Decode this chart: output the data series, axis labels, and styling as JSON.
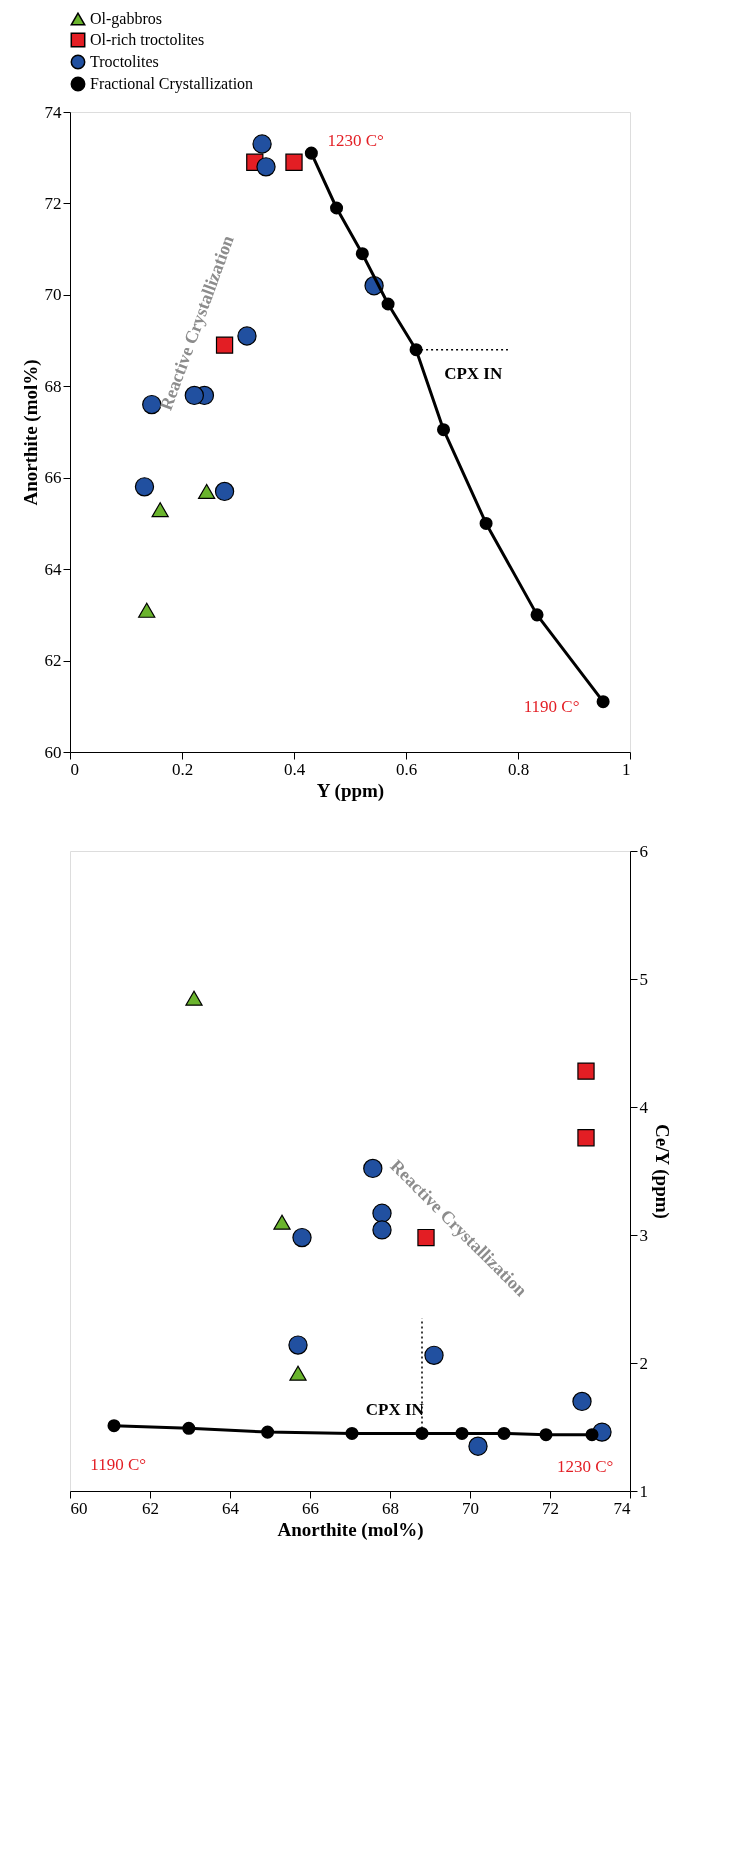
{
  "chart_data": [
    {
      "type": "scatter",
      "xlabel": "Y (ppm)",
      "ylabel": "Anorthite (mol%)",
      "xlim": [
        0,
        1
      ],
      "xticks": [
        0,
        0.2,
        0.4,
        0.6,
        0.8,
        1
      ],
      "ylim": [
        60,
        74
      ],
      "yticks": [
        60,
        62,
        64,
        66,
        68,
        70,
        72,
        74
      ],
      "grid": false,
      "legend": "top",
      "series": [
        {
          "name": "Ol-gabbros",
          "marker": "triangle",
          "color": "#6ab42d",
          "x": [
            0.244,
            0.161,
            0.137
          ],
          "values": [
            65.7,
            65.3,
            63.1
          ]
        },
        {
          "name": "Ol-rich troctolites",
          "marker": "square",
          "color": "#e31e24",
          "x": [
            0.4,
            0.33,
            0.276
          ],
          "values": [
            72.9,
            72.9,
            68.9
          ]
        },
        {
          "name": "Troctolites",
          "marker": "circle",
          "color": "#2150a0",
          "x": [
            0.343,
            0.35,
            0.316,
            0.276,
            0.24,
            0.222,
            0.146,
            0.133,
            0.543
          ],
          "values": [
            73.3,
            72.8,
            69.1,
            65.7,
            67.8,
            67.8,
            67.6,
            65.8,
            70.2
          ]
        },
        {
          "name": "Fractional Crystallization",
          "type": "line",
          "marker": "circle",
          "line_style": "solid",
          "color": "#000000",
          "x": [
            0.431,
            0.476,
            0.522,
            0.568,
            0.618,
            0.667,
            0.743,
            0.834,
            0.952
          ],
          "values": [
            73.1,
            71.9,
            70.9,
            69.8,
            68.8,
            67.05,
            65.0,
            63.0,
            61.1
          ]
        },
        {
          "type": "line",
          "marker": "none",
          "line_style": "dotted",
          "color": "#000000",
          "x": [
            0.618,
            0.782
          ],
          "values": [
            68.8,
            68.8
          ]
        }
      ],
      "annotations": [
        "1230 C°",
        "1190 C°",
        "CPX IN",
        "Reactive Crystallization"
      ]
    },
    {
      "type": "scatter",
      "xlabel": "Anorthite (mol%)",
      "y2label": "Ce/Y (ppm)",
      "xlim": [
        60,
        74
      ],
      "xticks": [
        60,
        62,
        64,
        66,
        68,
        70,
        72,
        74
      ],
      "y2lim": [
        1,
        6
      ],
      "y2ticks": [
        1,
        2,
        3,
        4,
        5,
        6
      ],
      "grid": false,
      "legend": false,
      "series": [
        {
          "axis": "y2",
          "marker": "triangle",
          "color": "#6ab42d",
          "x": [
            65.7,
            65.3,
            63.1
          ],
          "values": [
            1.92,
            3.1,
            4.85
          ]
        },
        {
          "axis": "y2",
          "marker": "square",
          "color": "#e31e24",
          "x": [
            72.9,
            72.9,
            68.9
          ],
          "values": [
            4.28,
            3.76,
            2.98
          ]
        },
        {
          "axis": "y2",
          "marker": "circle",
          "color": "#2150a0",
          "x": [
            73.3,
            72.8,
            70.2,
            69.1,
            67.57,
            67.8,
            67.8,
            65.8,
            65.7
          ],
          "values": [
            1.46,
            1.7,
            1.35,
            2.06,
            3.52,
            3.17,
            3.04,
            2.98,
            2.14
          ]
        },
        {
          "type": "line",
          "axis": "y2",
          "marker": "circle",
          "line_style": "solid",
          "color": "#000000",
          "x": [
            73.05,
            71.9,
            70.85,
            69.8,
            68.8,
            67.05,
            64.94,
            62.97,
            61.1
          ],
          "values": [
            1.44,
            1.44,
            1.45,
            1.45,
            1.45,
            1.45,
            1.46,
            1.49,
            1.51
          ]
        },
        {
          "type": "line",
          "axis": "y2",
          "marker": "none",
          "line_style": "dotted",
          "color": "#000000",
          "x": [
            68.8,
            68.8
          ],
          "values": [
            1.45,
            2.35
          ]
        }
      ],
      "annotations": [
        "1230 C°",
        "1190 C°",
        "CPX IN",
        "Reactive Crystallization"
      ]
    }
  ]
}
